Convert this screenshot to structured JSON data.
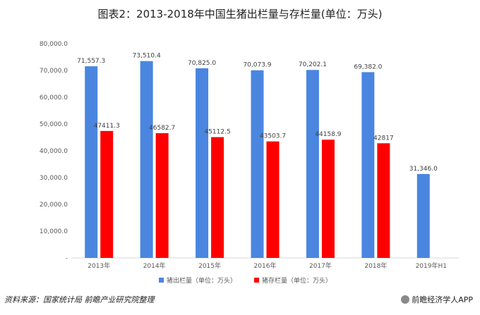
{
  "chart_data": {
    "type": "bar",
    "title": "图表2：2013-2018年中国生猪出栏量与存栏量(单位：万头)",
    "categories": [
      "2013年",
      "2014年",
      "2015年",
      "2016年",
      "2017年",
      "2018年",
      "2019年H1"
    ],
    "series": [
      {
        "name": "猪出栏量（单位：万头）",
        "color": "#4a86e0",
        "values": [
          71557.3,
          73510.4,
          70825.0,
          70073.9,
          70202.1,
          69382.0,
          31346.0
        ],
        "labels": [
          "71,557.3",
          "73,510.4",
          "70,825.0",
          "70,073.9",
          "70,202.1",
          "69,382.0",
          "31,346.0"
        ]
      },
      {
        "name": "猪存栏量（单位：万头）",
        "color": "#ff0000",
        "values": [
          47411.3,
          46582.7,
          45112.5,
          43503.7,
          44158.9,
          42817,
          null
        ],
        "labels": [
          "47411.3",
          "46582.7",
          "45112.5",
          "43503.7",
          "44158.9",
          "42817",
          ""
        ]
      }
    ],
    "ylim": [
      0,
      80000
    ],
    "yticks": [
      0,
      10000,
      20000,
      30000,
      40000,
      50000,
      60000,
      70000,
      80000
    ],
    "ytick_labels": [
      "-",
      "10,000.0",
      "20,000.0",
      "30,000.0",
      "40,000.0",
      "50,000.0",
      "60,000.0",
      "70,000.0",
      "80,000.0"
    ],
    "grid": false,
    "legend_position": "bottom"
  },
  "footer": {
    "source": "资料来源：国家统计局 前瞻产业研究院整理",
    "brand": "前瞻经济学人APP"
  }
}
